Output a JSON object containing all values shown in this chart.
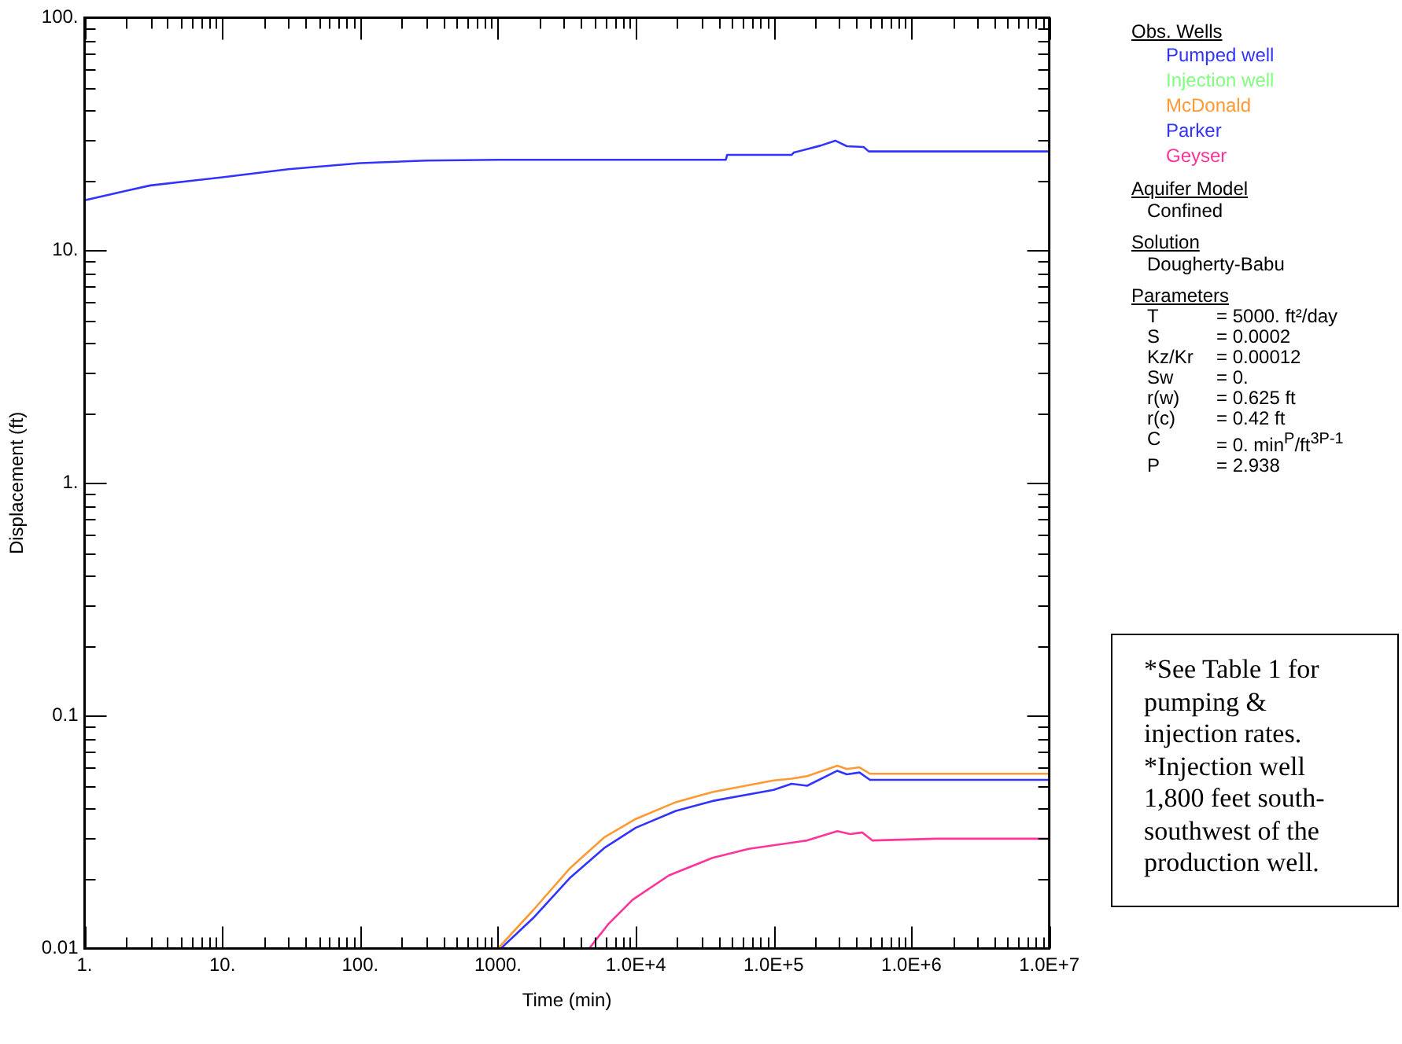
{
  "chart_data": {
    "type": "line",
    "xlabel": "Time (min)",
    "ylabel": "Displacement (ft)",
    "legend_title": "Obs. Wells",
    "legend": "top right",
    "log": "xy",
    "grid": false,
    "marker": "none",
    "line_style": "solid",
    "xlim": [
      1,
      10000000
    ],
    "ylim": [
      0.01,
      100
    ],
    "xticks": [
      {
        "value": 1,
        "label": "1."
      },
      {
        "value": 2,
        "label": null
      },
      {
        "value": 3,
        "label": null
      },
      {
        "value": 4,
        "label": null
      },
      {
        "value": 5,
        "label": null
      },
      {
        "value": 6,
        "label": null
      },
      {
        "value": 7,
        "label": null
      },
      {
        "value": 8,
        "label": null
      },
      {
        "value": 9,
        "label": null
      },
      {
        "value": 10,
        "label": "10."
      },
      {
        "value": 20,
        "label": null
      },
      {
        "value": 30,
        "label": null
      },
      {
        "value": 40,
        "label": null
      },
      {
        "value": 50,
        "label": null
      },
      {
        "value": 60,
        "label": null
      },
      {
        "value": 70,
        "label": null
      },
      {
        "value": 80,
        "label": null
      },
      {
        "value": 90,
        "label": null
      },
      {
        "value": 100,
        "label": "100."
      },
      {
        "value": 200,
        "label": null
      },
      {
        "value": 300,
        "label": null
      },
      {
        "value": 400,
        "label": null
      },
      {
        "value": 500,
        "label": null
      },
      {
        "value": 600,
        "label": null
      },
      {
        "value": 700,
        "label": null
      },
      {
        "value": 800,
        "label": null
      },
      {
        "value": 900,
        "label": null
      },
      {
        "value": 1000,
        "label": "1000."
      },
      {
        "value": 2000,
        "label": null
      },
      {
        "value": 3000,
        "label": null
      },
      {
        "value": 4000,
        "label": null
      },
      {
        "value": 5000,
        "label": null
      },
      {
        "value": 6000,
        "label": null
      },
      {
        "value": 7000,
        "label": null
      },
      {
        "value": 8000,
        "label": null
      },
      {
        "value": 9000,
        "label": null
      },
      {
        "value": 10000,
        "label": "1.0E+4"
      },
      {
        "value": 20000,
        "label": null
      },
      {
        "value": 30000,
        "label": null
      },
      {
        "value": 40000,
        "label": null
      },
      {
        "value": 50000,
        "label": null
      },
      {
        "value": 60000,
        "label": null
      },
      {
        "value": 70000,
        "label": null
      },
      {
        "value": 80000,
        "label": null
      },
      {
        "value": 90000,
        "label": null
      },
      {
        "value": 100000,
        "label": "1.0E+5"
      },
      {
        "value": 200000,
        "label": null
      },
      {
        "value": 300000,
        "label": null
      },
      {
        "value": 400000,
        "label": null
      },
      {
        "value": 500000,
        "label": null
      },
      {
        "value": 600000,
        "label": null
      },
      {
        "value": 700000,
        "label": null
      },
      {
        "value": 800000,
        "label": null
      },
      {
        "value": 900000,
        "label": null
      },
      {
        "value": 1000000,
        "label": "1.0E+6"
      },
      {
        "value": 2000000,
        "label": null
      },
      {
        "value": 3000000,
        "label": null
      },
      {
        "value": 4000000,
        "label": null
      },
      {
        "value": 5000000,
        "label": null
      },
      {
        "value": 6000000,
        "label": null
      },
      {
        "value": 7000000,
        "label": null
      },
      {
        "value": 8000000,
        "label": null
      },
      {
        "value": 9000000,
        "label": null
      },
      {
        "value": 10000000,
        "label": "1.0E+7"
      }
    ],
    "yticks": [
      {
        "value": 0.01,
        "label": "0.01"
      },
      {
        "value": 0.02,
        "label": null
      },
      {
        "value": 0.03,
        "label": null
      },
      {
        "value": 0.04,
        "label": null
      },
      {
        "value": 0.05,
        "label": null
      },
      {
        "value": 0.06,
        "label": null
      },
      {
        "value": 0.07,
        "label": null
      },
      {
        "value": 0.08,
        "label": null
      },
      {
        "value": 0.09,
        "label": null
      },
      {
        "value": 0.1,
        "label": "0.1"
      },
      {
        "value": 0.2,
        "label": null
      },
      {
        "value": 0.3,
        "label": null
      },
      {
        "value": 0.4,
        "label": null
      },
      {
        "value": 0.5,
        "label": null
      },
      {
        "value": 0.6,
        "label": null
      },
      {
        "value": 0.7,
        "label": null
      },
      {
        "value": 0.8,
        "label": null
      },
      {
        "value": 0.9,
        "label": null
      },
      {
        "value": 1,
        "label": "1."
      },
      {
        "value": 2,
        "label": null
      },
      {
        "value": 3,
        "label": null
      },
      {
        "value": 4,
        "label": null
      },
      {
        "value": 5,
        "label": null
      },
      {
        "value": 6,
        "label": null
      },
      {
        "value": 7,
        "label": null
      },
      {
        "value": 8,
        "label": null
      },
      {
        "value": 9,
        "label": null
      },
      {
        "value": 10,
        "label": "10."
      },
      {
        "value": 20,
        "label": null
      },
      {
        "value": 30,
        "label": null
      },
      {
        "value": 40,
        "label": null
      },
      {
        "value": 50,
        "label": null
      },
      {
        "value": 60,
        "label": null
      },
      {
        "value": 70,
        "label": null
      },
      {
        "value": 80,
        "label": null
      },
      {
        "value": 90,
        "label": null
      },
      {
        "value": 100,
        "label": "100."
      }
    ],
    "series": [
      {
        "name": "Pumped well",
        "color": "#3333ff",
        "x": [
          1,
          2,
          3,
          10,
          30,
          100,
          300,
          1000,
          45000,
          46000,
          135000,
          140000,
          220000,
          280000,
          340000,
          450000,
          490000,
          10000000
        ],
        "values": [
          16.4,
          18.0,
          19.0,
          20.6,
          22.3,
          23.7,
          24.3,
          24.5,
          24.5,
          25.7,
          25.7,
          26.3,
          28.2,
          29.6,
          28.0,
          27.8,
          26.6,
          26.6
        ]
      },
      {
        "name": "Injection well",
        "color": "#80ff80"
      },
      {
        "name": "McDonald",
        "color": "#ff9933",
        "x": [
          1000,
          1800,
          3300,
          5900,
          10000,
          19500,
          36000,
          100000,
          135000,
          175000,
          290000,
          340000,
          420000,
          500000,
          1500000,
          10000000
        ],
        "values": [
          0.01,
          0.0146,
          0.022,
          0.03,
          0.036,
          0.0425,
          0.047,
          0.0527,
          0.0536,
          0.055,
          0.061,
          0.059,
          0.06,
          0.0563,
          0.0563,
          0.0563
        ]
      },
      {
        "name": "Parker",
        "color": "#3333ff",
        "x": [
          1050,
          1800,
          3300,
          5900,
          10000,
          19500,
          36000,
          100000,
          135000,
          175000,
          290000,
          340000,
          420000,
          500000,
          10000000
        ],
        "values": [
          0.01,
          0.0135,
          0.02,
          0.027,
          0.033,
          0.039,
          0.043,
          0.048,
          0.051,
          0.05,
          0.058,
          0.056,
          0.057,
          0.053,
          0.053
        ]
      },
      {
        "name": "Geyser",
        "color": "#ff3399",
        "x": [
          4600,
          6300,
          9500,
          17400,
          36000,
          66000,
          175000,
          290000,
          360000,
          440000,
          520000,
          1500000,
          10000000
        ],
        "values": [
          0.01,
          0.0127,
          0.0162,
          0.0206,
          0.0245,
          0.0268,
          0.0291,
          0.0319,
          0.031,
          0.0315,
          0.0291,
          0.0296,
          0.0296
        ]
      }
    ],
    "annotations": [
      "Aquifer Model",
      "Confined",
      "Solution",
      "Dougherty-Babu",
      "Parameters",
      "T = 5000. ft²/day",
      "S = 0.0002",
      "Kz/Kr = 0.00012",
      "Sw = 0.",
      "r(w) = 0.625 ft",
      "r(c) = 0.42 ft",
      "C = 0. min$^{P}$/ft$^{3P-1}$",
      "P = 2.938",
      "*See Table 1 for pumping & injection rates.",
      "*Injection well 1,800 feet south-southwest of the production well."
    ]
  }
}
